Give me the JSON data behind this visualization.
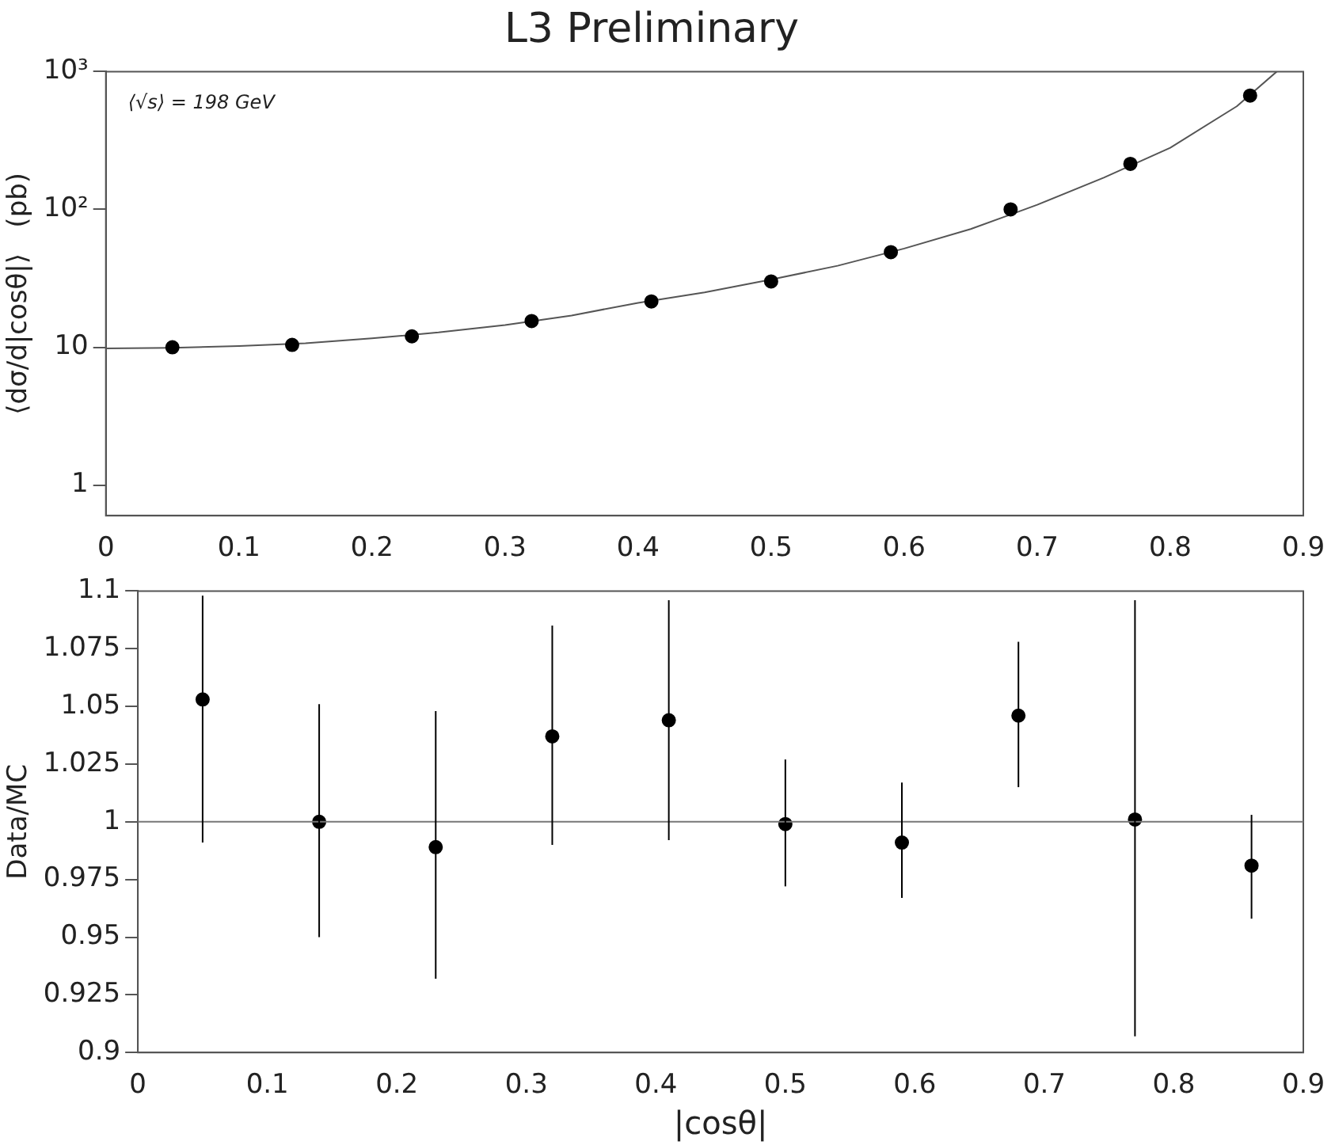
{
  "chart_data": [
    {
      "type": "scatter",
      "title": "L3 Preliminary",
      "ylabel": "⟨dσ/d|cosθ|⟩   (pb)",
      "annotations": [
        "⟨√s⟩ = 198 GeV"
      ],
      "log": "y",
      "xlim": [
        0,
        0.9
      ],
      "xticks": [
        0,
        0.1,
        0.2,
        0.3,
        0.4,
        0.5,
        0.6,
        0.7,
        0.8,
        0.9
      ],
      "ylim": [
        0.6,
        1000
      ],
      "yticks": [
        {
          "value": 1,
          "label": "1"
        },
        {
          "value": 10,
          "label": "10"
        },
        {
          "value": 100,
          "label": "10²"
        },
        {
          "value": 1000,
          "label": "10³"
        }
      ],
      "marker": "circle",
      "series": [
        {
          "color": "#000000",
          "x": [
            0.05,
            0.14,
            0.23,
            0.32,
            0.41,
            0.5,
            0.59,
            0.68,
            0.77,
            0.86
          ],
          "values": [
            10,
            10.4,
            12,
            15.5,
            21.5,
            30,
            49,
            100,
            214,
            670
          ]
        },
        {
          "type": "line",
          "color": "#555555",
          "marker": "none",
          "x": [
            0,
            0.05,
            0.1,
            0.15,
            0.2,
            0.25,
            0.3,
            0.35,
            0.4,
            0.45,
            0.5,
            0.55,
            0.6,
            0.65,
            0.7,
            0.75,
            0.8,
            0.85,
            0.88
          ],
          "values": [
            9.8,
            9.9,
            10.2,
            10.7,
            11.6,
            12.8,
            14.5,
            17,
            21,
            25,
            31,
            39,
            52,
            72,
            108,
            170,
            280,
            560,
            1000
          ]
        }
      ]
    },
    {
      "type": "scatter",
      "xlabel": "|cosθ|",
      "ylabel": "Data/MC",
      "xlim": [
        0,
        0.9
      ],
      "xticks": [
        0,
        0.1,
        0.2,
        0.3,
        0.4,
        0.5,
        0.6,
        0.7,
        0.8,
        0.9
      ],
      "ylim": [
        0.9,
        1.1
      ],
      "yticks": [
        0.9,
        0.925,
        0.95,
        0.975,
        1,
        1.025,
        1.05,
        1.075,
        1.1
      ],
      "marker": "circle",
      "ref_lines": [
        {
          "axis": "y",
          "value": 1,
          "color": "#777777"
        }
      ],
      "series": [
        {
          "color": "#000000",
          "x": [
            0.05,
            0.14,
            0.23,
            0.32,
            0.41,
            0.5,
            0.59,
            0.68,
            0.77,
            0.86
          ],
          "values": [
            1.053,
            1.0,
            0.989,
            1.037,
            1.044,
            0.999,
            0.991,
            1.046,
            1.001,
            0.981
          ],
          "errors": [
            [
              0.991,
              1.098
            ],
            [
              0.95,
              1.051
            ],
            [
              0.932,
              1.048
            ],
            [
              0.99,
              1.085
            ],
            [
              0.992,
              1.096
            ],
            [
              0.972,
              1.027
            ],
            [
              0.967,
              1.017
            ],
            [
              1.015,
              1.078
            ],
            [
              0.907,
              1.096
            ],
            [
              0.958,
              1.003
            ]
          ]
        }
      ]
    }
  ]
}
